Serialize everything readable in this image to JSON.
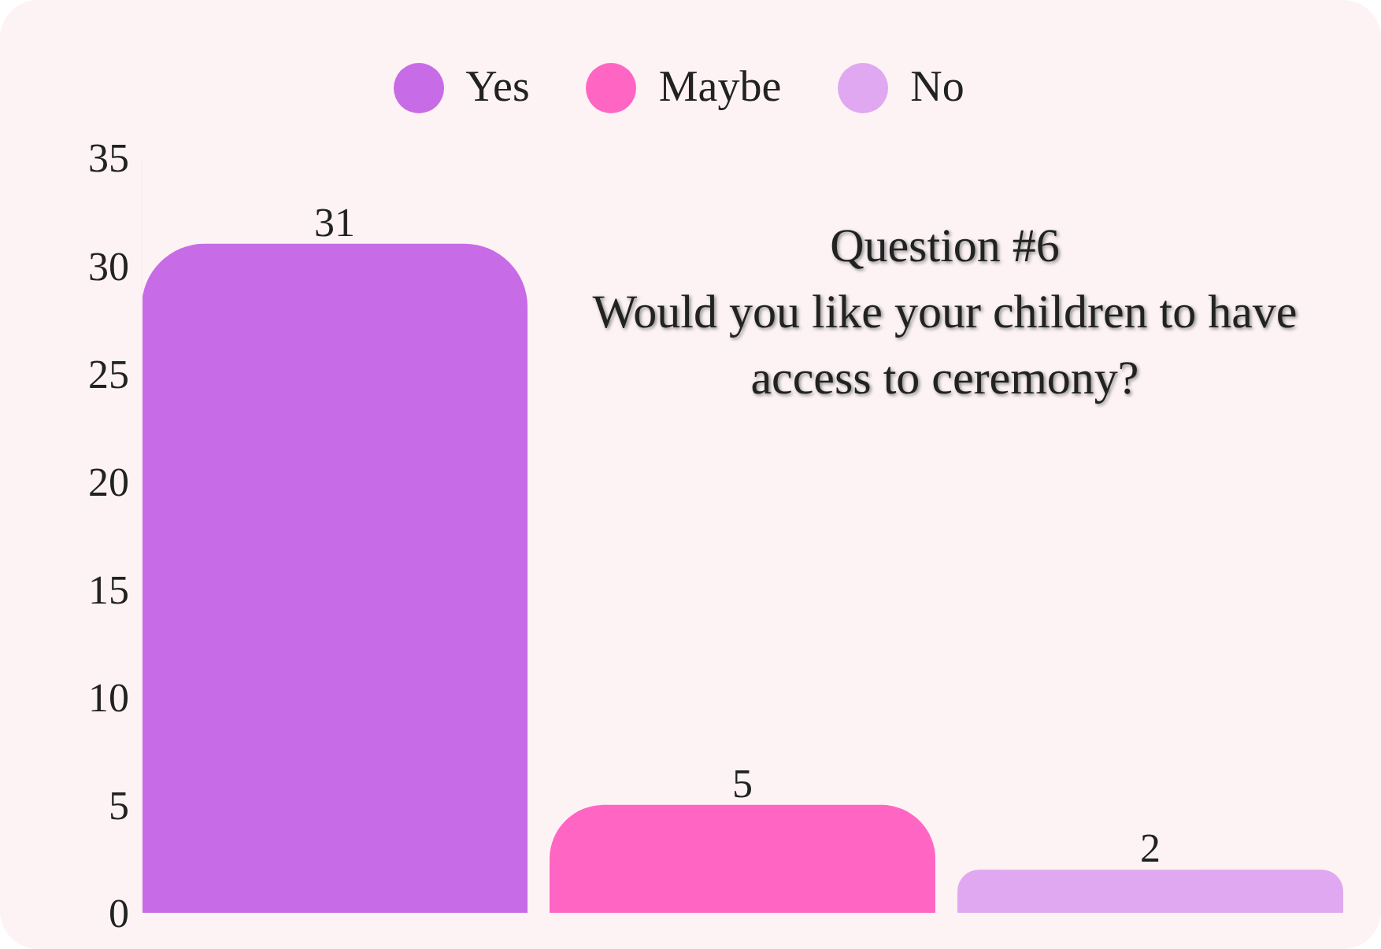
{
  "chart_data": {
    "type": "bar",
    "title": "Question #6",
    "subtitle": "Would you like your children to have access to ceremony?",
    "categories": [
      null
    ],
    "series": [
      {
        "name": "Yes",
        "color": "#c86be6",
        "values": [
          31
        ]
      },
      {
        "name": "Maybe",
        "color": "#ff66c4",
        "values": [
          5
        ]
      },
      {
        "name": "No",
        "color": "#e0a8f0",
        "values": [
          2
        ]
      }
    ],
    "ylim": [
      0,
      35
    ],
    "yticks": [
      0,
      5,
      10,
      15,
      20,
      25,
      30,
      35
    ],
    "grid": false,
    "legend": "top",
    "data_labels": true
  }
}
